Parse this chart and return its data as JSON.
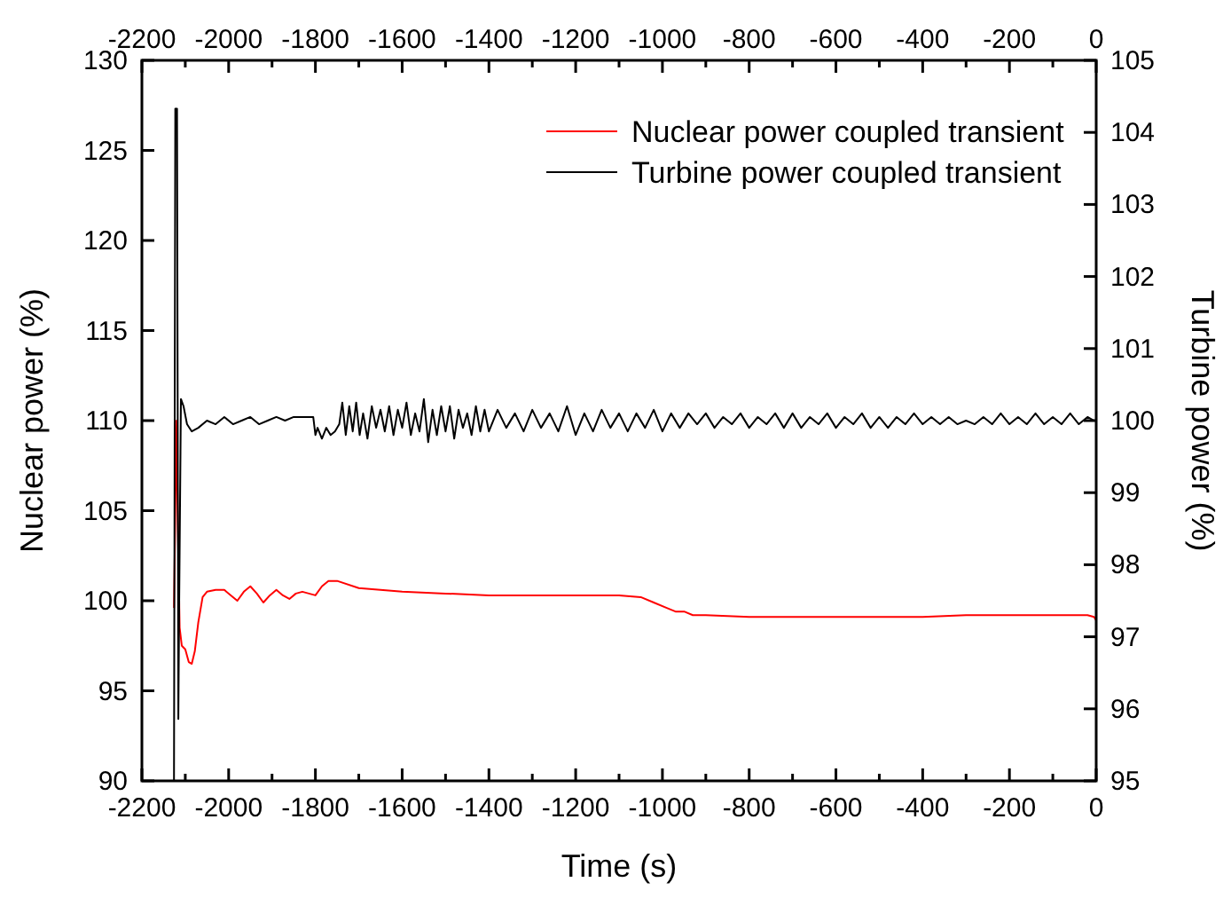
{
  "chart_data": {
    "type": "line",
    "xlabel": "Time (s)",
    "ylabel": "Nuclear power (%)",
    "y2label": "Turbine power (%)",
    "xlim": [
      -2200,
      0
    ],
    "xticks": [
      -2200,
      {
        "value": -2100,
        "label": null
      },
      -2000,
      {
        "value": -1900,
        "label": null
      },
      -1800,
      {
        "value": -1700,
        "label": null
      },
      -1600,
      {
        "value": -1500,
        "label": null
      },
      -1400,
      {
        "value": -1300,
        "label": null
      },
      -1200,
      {
        "value": -1100,
        "label": null
      },
      -1000,
      {
        "value": -900,
        "label": null
      },
      -800,
      {
        "value": -700,
        "label": null
      },
      -600,
      {
        "value": -500,
        "label": null
      },
      -400,
      {
        "value": -300,
        "label": null
      },
      -200,
      {
        "value": -100,
        "label": null
      },
      0
    ],
    "x2lim": [
      -2200,
      0
    ],
    "x2ticks": [
      -2200,
      {
        "value": -2100,
        "label": null
      },
      -2000,
      {
        "value": -1900,
        "label": null
      },
      -1800,
      {
        "value": -1700,
        "label": null
      },
      -1600,
      {
        "value": -1500,
        "label": null
      },
      -1400,
      {
        "value": -1300,
        "label": null
      },
      -1200,
      {
        "value": -1100,
        "label": null
      },
      -1000,
      {
        "value": -900,
        "label": null
      },
      -800,
      {
        "value": -700,
        "label": null
      },
      -600,
      {
        "value": -500,
        "label": null
      },
      -400,
      {
        "value": -300,
        "label": null
      },
      -200,
      {
        "value": -100,
        "label": null
      },
      0
    ],
    "ylim": [
      90,
      130
    ],
    "yticks": [
      90,
      95,
      100,
      105,
      110,
      115,
      120,
      125,
      130
    ],
    "y2lim": [
      95,
      105
    ],
    "y2ticks": [
      95,
      96,
      97,
      98,
      99,
      100,
      101,
      102,
      103,
      104,
      105
    ],
    "grid": false,
    "legend": "top right",
    "marker": "none",
    "line_style": "solid",
    "series": [
      {
        "name": "Nuclear power coupled transient",
        "color": "#ff0000",
        "x": [
          -2126,
          -2123,
          -2120,
          -2117,
          -2113,
          -2108,
          -2100,
          -2092,
          -2085,
          -2078,
          -2070,
          -2060,
          -2050,
          -2030,
          -2010,
          -1995,
          -1980,
          -1965,
          -1950,
          -1935,
          -1920,
          -1905,
          -1890,
          -1875,
          -1860,
          -1845,
          -1830,
          -1815,
          -1800,
          -1785,
          -1770,
          -1750,
          -1700,
          -1600,
          -1500,
          -1400,
          -1300,
          -1200,
          -1100,
          -1050,
          -1020,
          -990,
          -970,
          -950,
          -930,
          -900,
          -800,
          -700,
          -600,
          -500,
          -400,
          -300,
          -200,
          -100,
          -20,
          -5,
          0
        ],
        "values": [
          99.6,
          105,
          110,
          104,
          98.5,
          97.5,
          97.3,
          96.6,
          96.5,
          97.2,
          98.8,
          100.2,
          100.5,
          100.6,
          100.6,
          100.3,
          100.0,
          100.5,
          100.8,
          100.4,
          99.9,
          100.3,
          100.6,
          100.3,
          100.1,
          100.4,
          100.5,
          100.4,
          100.3,
          100.8,
          101.1,
          101.1,
          100.7,
          100.5,
          100.4,
          100.3,
          100.3,
          100.3,
          100.3,
          100.2,
          99.9,
          99.6,
          99.4,
          99.4,
          99.2,
          99.2,
          99.1,
          99.1,
          99.1,
          99.1,
          99.1,
          99.2,
          99.2,
          99.2,
          99.2,
          99.1,
          98.9
        ]
      },
      {
        "name": "Turbine power coupled transient",
        "color": "#000000",
        "axis": "y2",
        "x": [
          -2126,
          -2123,
          -2119,
          -2116,
          -2114,
          -2110,
          -2104,
          -2096,
          -2085,
          -2070,
          -2050,
          -2030,
          -2010,
          -1990,
          -1970,
          -1950,
          -1930,
          -1910,
          -1890,
          -1870,
          -1850,
          -1830,
          -1805,
          -1800,
          -1795,
          -1785,
          -1775,
          -1765,
          -1755,
          -1745,
          -1738,
          -1730,
          -1722,
          -1714,
          -1706,
          -1698,
          -1690,
          -1680,
          -1670,
          -1660,
          -1650,
          -1640,
          -1630,
          -1620,
          -1610,
          -1600,
          -1590,
          -1580,
          -1570,
          -1560,
          -1550,
          -1540,
          -1530,
          -1520,
          -1510,
          -1500,
          -1490,
          -1480,
          -1470,
          -1460,
          -1450,
          -1440,
          -1430,
          -1420,
          -1410,
          -1400,
          -1380,
          -1360,
          -1340,
          -1320,
          -1300,
          -1280,
          -1260,
          -1240,
          -1220,
          -1200,
          -1180,
          -1160,
          -1140,
          -1120,
          -1100,
          -1080,
          -1060,
          -1040,
          -1020,
          -1000,
          -980,
          -960,
          -940,
          -920,
          -900,
          -880,
          -860,
          -840,
          -820,
          -800,
          -780,
          -760,
          -740,
          -720,
          -700,
          -680,
          -660,
          -640,
          -620,
          -600,
          -580,
          -560,
          -540,
          -520,
          -500,
          -480,
          -460,
          -440,
          -420,
          -400,
          -380,
          -360,
          -340,
          -320,
          -300,
          -280,
          -260,
          -240,
          -220,
          -200,
          -180,
          -160,
          -140,
          -120,
          -100,
          -80,
          -60,
          -40,
          -20,
          -5
        ],
        "values": [
          95.0,
          104.33,
          104.33,
          95.86,
          97.5,
          100.3,
          100.2,
          99.95,
          99.85,
          99.9,
          100.0,
          99.95,
          100.05,
          99.95,
          100.0,
          100.05,
          99.95,
          100.0,
          100.05,
          100.0,
          100.05,
          100.05,
          100.05,
          99.8,
          99.9,
          99.75,
          99.9,
          99.8,
          99.85,
          99.95,
          100.25,
          99.8,
          100.2,
          99.85,
          100.25,
          99.8,
          100.1,
          99.75,
          100.2,
          99.9,
          100.15,
          99.85,
          100.2,
          99.8,
          100.15,
          99.9,
          100.25,
          99.8,
          100.1,
          99.85,
          100.3,
          99.7,
          100.15,
          99.8,
          100.2,
          99.85,
          100.2,
          99.75,
          100.15,
          99.9,
          100.1,
          99.8,
          100.2,
          99.85,
          100.15,
          99.85,
          100.15,
          99.9,
          100.1,
          99.85,
          100.15,
          99.9,
          100.1,
          99.85,
          100.2,
          99.8,
          100.1,
          99.85,
          100.15,
          99.9,
          100.1,
          99.85,
          100.1,
          99.9,
          100.15,
          99.85,
          100.1,
          99.9,
          100.1,
          99.95,
          100.1,
          99.9,
          100.05,
          99.95,
          100.1,
          99.9,
          100.05,
          99.95,
          100.1,
          99.9,
          100.1,
          99.9,
          100.05,
          99.95,
          100.1,
          99.9,
          100.05,
          99.95,
          100.1,
          99.9,
          100.05,
          99.9,
          100.05,
          99.95,
          100.1,
          99.95,
          100.05,
          99.95,
          100.05,
          99.95,
          100.0,
          99.95,
          100.05,
          99.95,
          100.1,
          99.95,
          100.05,
          99.95,
          100.1,
          99.95,
          100.05,
          99.95,
          100.1,
          99.95,
          100.05,
          100.0
        ]
      }
    ]
  }
}
